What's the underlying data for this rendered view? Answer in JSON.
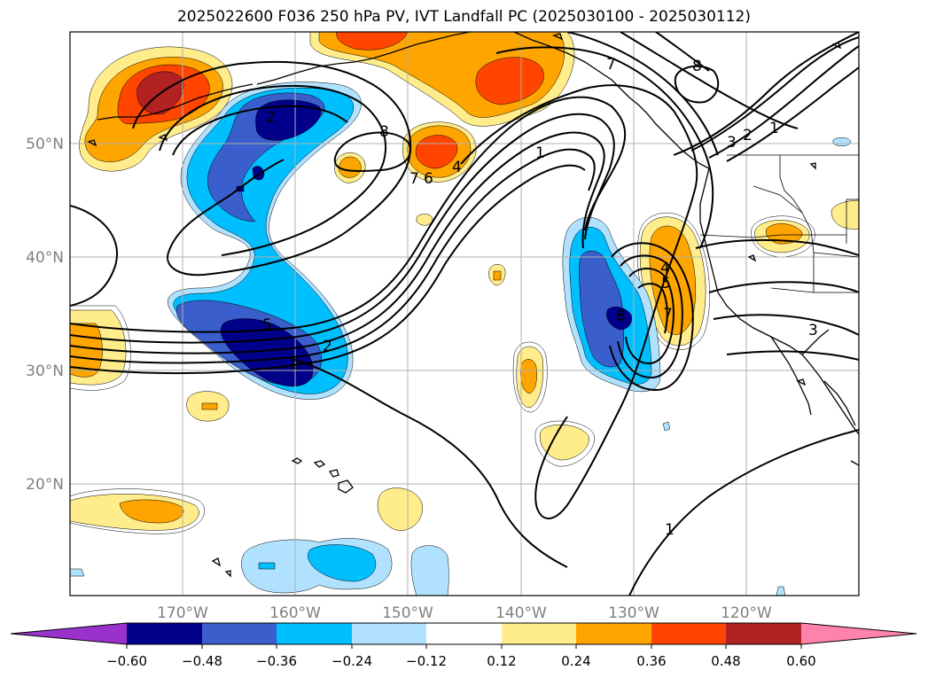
{
  "title": "2025022600 F036 250 hPa PV, IVT Landfall PC (2025030100 - 2025030112)",
  "map": {
    "lat_labels": [
      "50°N",
      "40°N",
      "30°N",
      "20°N"
    ],
    "lon_labels": [
      "170°W",
      "160°W",
      "150°W",
      "140°W",
      "130°W",
      "120°W"
    ],
    "contour_labels": [
      "8",
      "8",
      "7",
      "6",
      "4",
      "1",
      "2",
      "5",
      "1",
      "4",
      "5",
      "7",
      "8",
      "3",
      "2",
      "1",
      "7",
      "1",
      "3",
      "2"
    ]
  },
  "colorbar": {
    "colors": [
      "#9932cc",
      "#00008b",
      "#3a5fcd",
      "#00bfff",
      "#b0e2ff",
      "#ffffff",
      "#ffec8b",
      "#ffa500",
      "#ff4500",
      "#b22222",
      "#ff82ab"
    ],
    "tick_labels": [
      "−0.60",
      "−0.48",
      "−0.36",
      "−0.24",
      "−0.12",
      "0.12",
      "0.24",
      "0.36",
      "0.48",
      "0.60"
    ]
  },
  "colors": {
    "coast": "#000000",
    "grid": "#b0b0b0"
  }
}
